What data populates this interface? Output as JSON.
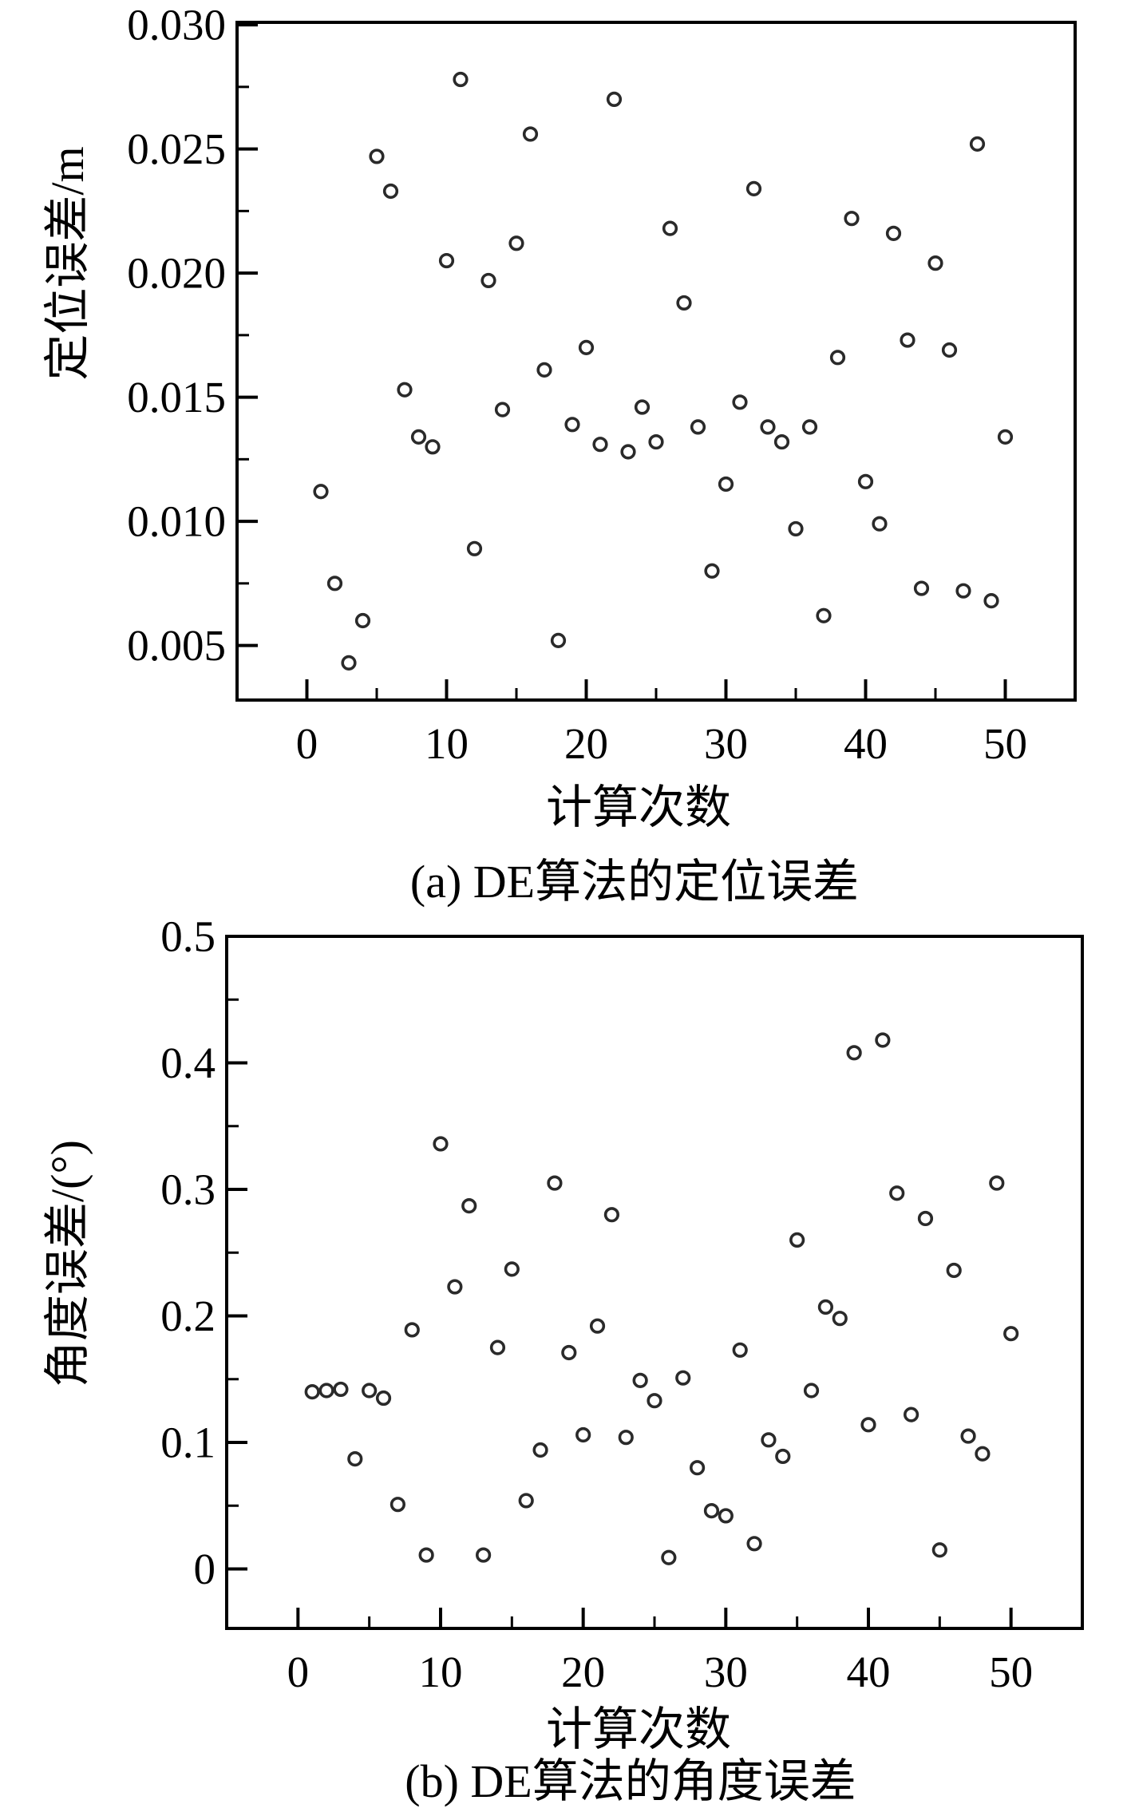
{
  "colors": {
    "background": "#ffffff",
    "frame": "#000000",
    "marker_stroke": "#2a2a2a",
    "text": "#000000"
  },
  "chart_data": [
    {
      "id": "a",
      "type": "scatter",
      "caption": "(a) DE算法的定位误差",
      "xlabel": "计算次数",
      "ylabel": "定位误差/m",
      "xlim": [
        -5,
        55
      ],
      "ylim": [
        0.0028,
        0.0301
      ],
      "grid": false,
      "legend": null,
      "marker": {
        "shape": "circle",
        "fill": "none",
        "stroke": "#2a2a2a"
      },
      "x_ticks": {
        "major": [
          0,
          10,
          20,
          30,
          40,
          50
        ],
        "labels": [
          "0",
          "10",
          "20",
          "30",
          "40",
          "50"
        ],
        "minor": [
          5,
          15,
          25,
          35,
          45
        ]
      },
      "y_ticks": {
        "major": [
          0.005,
          0.01,
          0.015,
          0.02,
          0.025,
          0.03
        ],
        "labels": [
          "0.005",
          "0.010",
          "0.015",
          "0.020",
          "0.025",
          "0.030"
        ],
        "minor": [
          0.0075,
          0.0125,
          0.0175,
          0.0225,
          0.0275
        ]
      },
      "x": [
        1,
        2,
        3,
        4,
        5,
        6,
        7,
        8,
        9,
        10,
        11,
        12,
        13,
        14,
        15,
        16,
        17,
        18,
        19,
        20,
        21,
        22,
        23,
        24,
        25,
        26,
        27,
        28,
        29,
        30,
        31,
        32,
        33,
        34,
        35,
        36,
        37,
        38,
        39,
        40,
        41,
        42,
        43,
        44,
        45,
        46,
        47,
        48,
        49,
        50
      ],
      "y": [
        0.0112,
        0.0075,
        0.0043,
        0.006,
        0.0247,
        0.0233,
        0.0153,
        0.0134,
        0.013,
        0.0205,
        0.0278,
        0.0089,
        0.0197,
        0.0145,
        0.0212,
        0.0256,
        0.0161,
        0.0052,
        0.0139,
        0.017,
        0.0131,
        0.027,
        0.0128,
        0.0146,
        0.0132,
        0.0218,
        0.0188,
        0.0138,
        0.008,
        0.0115,
        0.0148,
        0.0234,
        0.0138,
        0.0132,
        0.0097,
        0.0138,
        0.0062,
        0.0166,
        0.0222,
        0.0116,
        0.0099,
        0.0216,
        0.0173,
        0.0073,
        0.0204,
        0.0169,
        0.0072,
        0.0252,
        0.0068,
        0.0134
      ]
    },
    {
      "id": "b",
      "type": "scatter",
      "caption": "(b) DE算法的角度误差",
      "xlabel": "计算次数",
      "ylabel": "角度误差/(°)",
      "xlim": [
        -5,
        55
      ],
      "ylim": [
        -0.047,
        0.5
      ],
      "grid": false,
      "legend": null,
      "marker": {
        "shape": "circle",
        "fill": "none",
        "stroke": "#2a2a2a"
      },
      "x_ticks": {
        "major": [
          0,
          10,
          20,
          30,
          40,
          50
        ],
        "labels": [
          "0",
          "10",
          "20",
          "30",
          "40",
          "50"
        ],
        "minor": [
          5,
          15,
          25,
          35,
          45
        ]
      },
      "y_ticks": {
        "major": [
          0,
          0.1,
          0.2,
          0.3,
          0.4,
          0.5
        ],
        "labels": [
          "0",
          "0.1",
          "0.2",
          "0.3",
          "0.4",
          "0.5"
        ],
        "minor": [
          0.05,
          0.15,
          0.25,
          0.35,
          0.45
        ]
      },
      "x": [
        1,
        2,
        3,
        4,
        5,
        6,
        7,
        8,
        9,
        10,
        11,
        12,
        13,
        14,
        15,
        16,
        17,
        18,
        19,
        20,
        21,
        22,
        23,
        24,
        25,
        26,
        27,
        28,
        29,
        30,
        31,
        32,
        33,
        34,
        35,
        36,
        37,
        38,
        39,
        40,
        41,
        42,
        43,
        44,
        45,
        46,
        47,
        48,
        49,
        50
      ],
      "y": [
        0.14,
        0.141,
        0.142,
        0.087,
        0.141,
        0.135,
        0.051,
        0.189,
        0.011,
        0.336,
        0.223,
        0.287,
        0.011,
        0.175,
        0.237,
        0.054,
        0.094,
        0.305,
        0.171,
        0.106,
        0.192,
        0.28,
        0.104,
        0.149,
        0.133,
        0.009,
        0.151,
        0.08,
        0.046,
        0.042,
        0.173,
        0.02,
        0.102,
        0.089,
        0.26,
        0.141,
        0.207,
        0.198,
        0.408,
        0.114,
        0.418,
        0.297,
        0.122,
        0.277,
        0.015,
        0.236,
        0.105,
        0.091,
        0.305,
        0.186
      ]
    }
  ]
}
